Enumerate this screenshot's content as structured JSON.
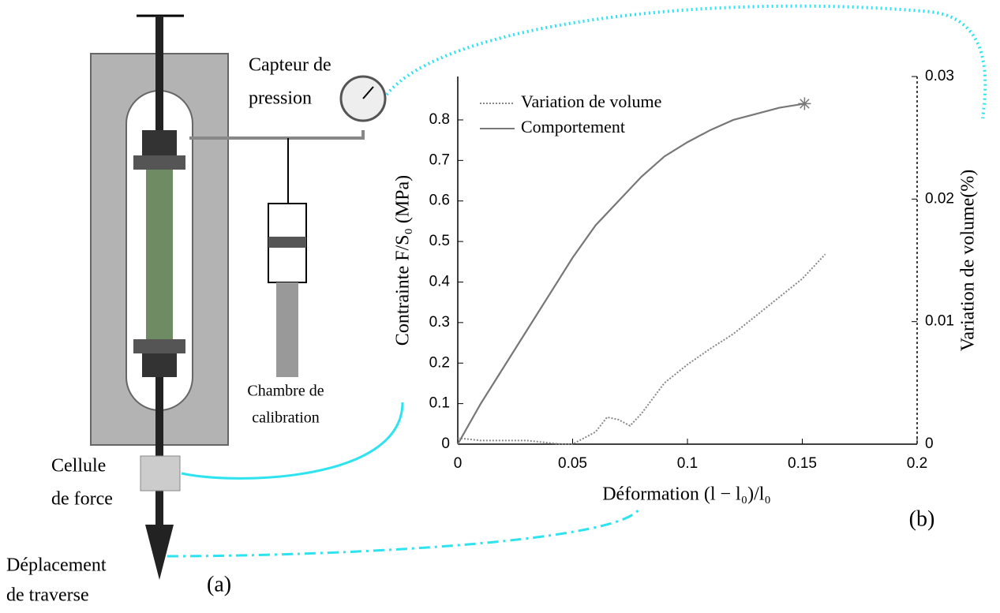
{
  "diagram": {
    "pressure_sensor": [
      "Capteur de",
      "pression"
    ],
    "calibration_chamber": [
      "Chambre de",
      "calibration"
    ],
    "load_cell": [
      "Cellule",
      "de force"
    ],
    "crosshead": [
      "Déplacement",
      "de traverse"
    ],
    "panel": "(a)"
  },
  "chart_data": {
    "type": "line",
    "panel": "(b)",
    "x_label": "Déformation (l − l₀)/l₀",
    "y_label": "Contrainte F/S₀ (MPa)",
    "y2_label": "Variation de volume(%)",
    "xlim": [
      0,
      0.2
    ],
    "xticks": [
      0,
      0.05,
      0.1,
      0.15,
      0.2
    ],
    "ylim": [
      0,
      0.907
    ],
    "yticks": [
      0,
      0.1,
      0.2,
      0.3,
      0.4,
      0.5,
      0.6,
      0.7,
      0.8
    ],
    "y2lim": [
      0,
      0.03
    ],
    "y2ticks": [
      0,
      0.01,
      0.02,
      0.03
    ],
    "legend": "upper-left",
    "series": [
      {
        "name": "Variation de volume",
        "color": "#888888",
        "style": "dotted",
        "axis": "y2",
        "x": [
          0,
          0.01,
          0.02,
          0.03,
          0.04,
          0.045,
          0.05,
          0.055,
          0.06,
          0.065,
          0.07,
          0.075,
          0.08,
          0.09,
          0.1,
          0.11,
          0.12,
          0.13,
          0.14,
          0.15,
          0.16
        ],
        "values": [
          0.0005,
          0.0003,
          0.0003,
          0.0003,
          0.0001,
          0,
          0,
          0.0005,
          0.001,
          0.0022,
          0.002,
          0.0015,
          0.0025,
          0.005,
          0.0065,
          0.0078,
          0.009,
          0.0105,
          0.012,
          0.0135,
          0.0155
        ]
      },
      {
        "name": "Comportement",
        "color": "#777777",
        "style": "solid",
        "marker_end": "star",
        "x": [
          0,
          0.01,
          0.02,
          0.03,
          0.04,
          0.05,
          0.06,
          0.07,
          0.08,
          0.09,
          0.1,
          0.11,
          0.12,
          0.13,
          0.14,
          0.151
        ],
        "values": [
          0,
          0.1,
          0.19,
          0.28,
          0.37,
          0.46,
          0.54,
          0.6,
          0.66,
          0.71,
          0.745,
          0.775,
          0.8,
          0.815,
          0.83,
          0.84
        ]
      }
    ]
  }
}
